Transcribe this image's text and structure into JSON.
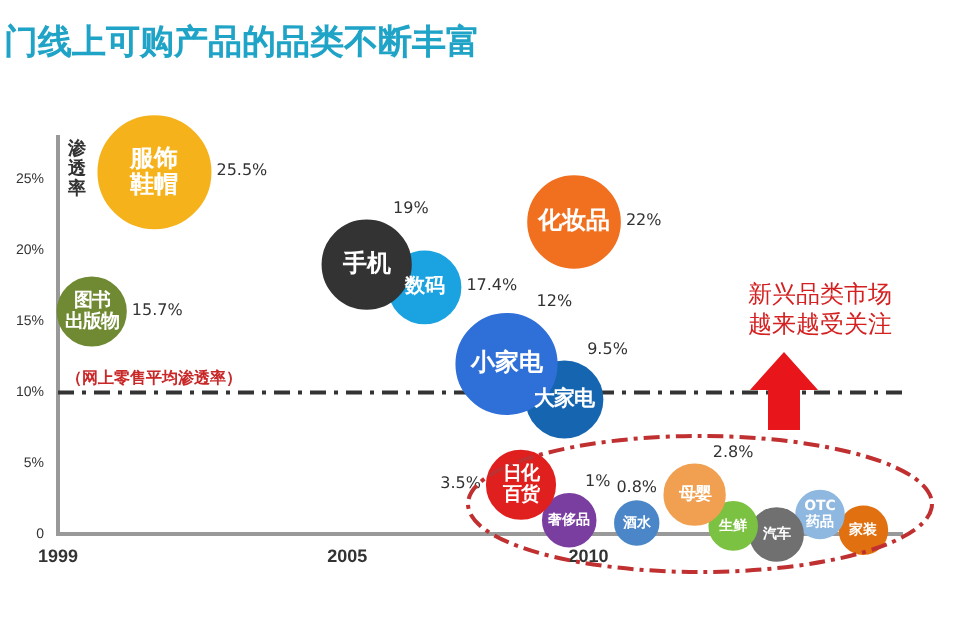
{
  "chart_data": {
    "type": "bubble",
    "title": "门线上可购产品的品类不断丰富",
    "ylabel": "渗透率",
    "series": [
      {
        "name": "服饰鞋帽",
        "color": "#f5b21b",
        "x": [
          2001.0
        ],
        "values": [
          25.5
        ],
        "sizes": [
          1
        ],
        "value_labels": [
          "25.5%"
        ]
      },
      {
        "name": "图书出版物",
        "color": "#6f8a32",
        "x": [
          1999.7
        ],
        "values": [
          15.7
        ],
        "sizes": [
          0.37
        ],
        "value_labels": [
          "15.7%"
        ]
      },
      {
        "name": "手机",
        "color": "#333333",
        "x": [
          2005.4
        ],
        "values": [
          19
        ],
        "sizes": [
          0.62
        ],
        "value_labels": [
          "19%"
        ]
      },
      {
        "name": "数码",
        "color": "#1aa3e0",
        "x": [
          2006.6
        ],
        "values": [
          17.4
        ],
        "sizes": [
          0.41
        ],
        "value_labels": [
          "17.4%"
        ]
      },
      {
        "name": "化妆品",
        "color": "#f07020",
        "x": [
          2009.7
        ],
        "values": [
          22
        ],
        "sizes": [
          0.67
        ],
        "value_labels": [
          "22%"
        ]
      },
      {
        "name": "小家电",
        "color": "#2f6fd8",
        "x": [
          2008.3
        ],
        "values": [
          12
        ],
        "sizes": [
          0.8
        ],
        "value_labels": [
          "12%"
        ]
      },
      {
        "name": "大家电",
        "color": "#1565b0",
        "x": [
          2009.5
        ],
        "values": [
          9.5
        ],
        "sizes": [
          0.46
        ],
        "value_labels": [
          "9.5%"
        ]
      },
      {
        "name": "日化百货",
        "color": "#e0201e",
        "x": [
          2008.6
        ],
        "values": [
          3.5
        ],
        "sizes": [
          0.37
        ],
        "value_labels": [
          "3.5%"
        ]
      },
      {
        "name": "奢侈品",
        "color": "#7a3da0",
        "x": [
          2009.6
        ],
        "values": [
          1
        ],
        "sizes": [
          0.22
        ],
        "value_labels": [
          "1%"
        ]
      },
      {
        "name": "酒水",
        "color": "#4a86c8",
        "x": [
          2011.0
        ],
        "values": [
          0.8
        ],
        "sizes": [
          0.15
        ],
        "value_labels": [
          "0.8%"
        ]
      },
      {
        "name": "母婴",
        "color": "#f0a050",
        "x": [
          2012.2
        ],
        "values": [
          2.8
        ],
        "sizes": [
          0.29
        ],
        "value_labels": [
          "2.8%"
        ]
      },
      {
        "name": "生鲜",
        "color": "#7cc242",
        "x": [
          2013.0
        ],
        "values": [
          0.6
        ],
        "sizes": [
          0.18
        ]
      },
      {
        "name": "汽车",
        "color": "#707070",
        "x": [
          2013.9
        ],
        "values": [
          0
        ],
        "sizes": [
          0.22
        ]
      },
      {
        "name": "OTC药品",
        "color": "#8fb8e0",
        "x": [
          2014.8
        ],
        "values": [
          1.4
        ],
        "sizes": [
          0.18
        ]
      },
      {
        "name": "家装",
        "color": "#e07010",
        "x": [
          2015.7
        ],
        "values": [
          0.3
        ],
        "sizes": [
          0.18
        ]
      }
    ],
    "xlim": [
      1999,
      2016.5
    ],
    "xticks": [
      1999,
      2005,
      2010
    ],
    "ylim": [
      0,
      28
    ],
    "yticks": [
      {
        "value": 0,
        "label": "0"
      },
      {
        "value": 5,
        "label": "5%"
      },
      {
        "value": 10,
        "label": "10%"
      },
      {
        "value": 15,
        "label": "15%"
      },
      {
        "value": 20,
        "label": "20%"
      },
      {
        "value": 25,
        "label": "25%"
      }
    ],
    "ref_lines": [
      {
        "axis": "y",
        "value": 10,
        "label": "（网上零售平均渗透率）",
        "color": "#333333",
        "line_style": "dashdot"
      }
    ],
    "annotations": [
      "新兴品类市场越来越受关注"
    ],
    "grid": false,
    "legend": false
  }
}
